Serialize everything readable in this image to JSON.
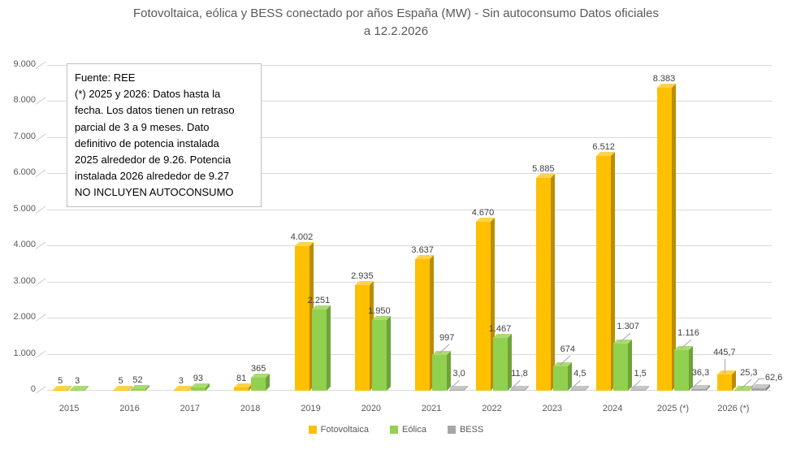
{
  "title": {
    "line1": "Fotovoltaica, eólica y BESS conectado por años España (MW) - Sin autoconsumo  Datos oficiales",
    "line2": "a 12.2.2026"
  },
  "annotation": {
    "lines": [
      "Fuente: REE",
      "(*) 2025 y 2026: Datos hasta la",
      "fecha. Los datos tienen un retraso",
      "parcial de 3 a 9 meses. Dato",
      "definitivo de potencia instalada",
      "2025 alrededor de 9.26. Potencia",
      "instalada 2026 alrededor de 9.27",
      "NO INCLUYEN AUTOCONSUMO"
    ]
  },
  "chart_data": {
    "type": "bar",
    "style": "3d-clustered-column",
    "unit": "MW",
    "title": "Fotovoltaica, eólica y BESS conectado por años España (MW) - Sin autoconsumo  Datos oficiales a 12.2.2026",
    "categories": [
      "2015",
      "2016",
      "2017",
      "2018",
      "2019",
      "2020",
      "2021",
      "2022",
      "2023",
      "2024",
      "2025 (*)",
      "2026 (*)"
    ],
    "ylim": [
      0,
      9000
    ],
    "ytick_labels": [
      "0",
      "1.000",
      "2.000",
      "3.000",
      "4.000",
      "5.000",
      "6.000",
      "7.000",
      "8.000",
      "9.000"
    ],
    "grid": true,
    "legend_position": "bottom",
    "series": [
      {
        "name": "Fotovoltaica",
        "color": "#FFC000",
        "color_side": "#BC8C00",
        "color_top": "#FFD24D",
        "values": [
          5,
          5,
          3,
          81,
          4002,
          2935,
          3637,
          4670,
          5885,
          6512,
          8383,
          445.7
        ],
        "labels": [
          "5",
          "5",
          "3",
          "81",
          "4.002",
          "2.935",
          "3.637",
          "4.670",
          "5.885",
          "6.512",
          "8.383",
          "445,7"
        ],
        "label_modes": [
          "above",
          "above",
          "above",
          "above",
          "above",
          "above",
          "above",
          "above",
          "above",
          "above",
          "above",
          "vert"
        ]
      },
      {
        "name": "Eólica",
        "color": "#92D050",
        "color_side": "#6FA33A",
        "color_top": "#ABDB72",
        "values": [
          3,
          52,
          93,
          365,
          2251,
          1950,
          997,
          1467,
          674,
          1307,
          1116,
          25.3
        ],
        "labels": [
          "3",
          "52",
          "93",
          "365",
          "2.251",
          "1.950",
          "997",
          "1.467",
          "674",
          "1.307",
          "1.116",
          "25,3"
        ],
        "label_modes": [
          "above",
          "above",
          "above",
          "above",
          "above",
          "above",
          "callout",
          "above",
          "callout",
          "callout",
          "callout",
          "callout"
        ]
      },
      {
        "name": "BESS",
        "color": "#A6A6A6",
        "color_side": "#7F7F7F",
        "color_top": "#C6C6C6",
        "values": [
          null,
          null,
          null,
          null,
          null,
          null,
          3.0,
          11.8,
          4.5,
          1.5,
          36.3,
          62.6
        ],
        "labels": [
          "",
          "",
          "",
          "",
          "",
          "",
          "3,0",
          "11,8",
          "4,5",
          "1,5",
          "36,3",
          "62,6"
        ],
        "label_modes": [
          "none",
          "none",
          "none",
          "none",
          "none",
          "none",
          "callout-b",
          "callout-b",
          "callout-b",
          "callout-b",
          "callout-b",
          "elbow"
        ]
      }
    ]
  }
}
